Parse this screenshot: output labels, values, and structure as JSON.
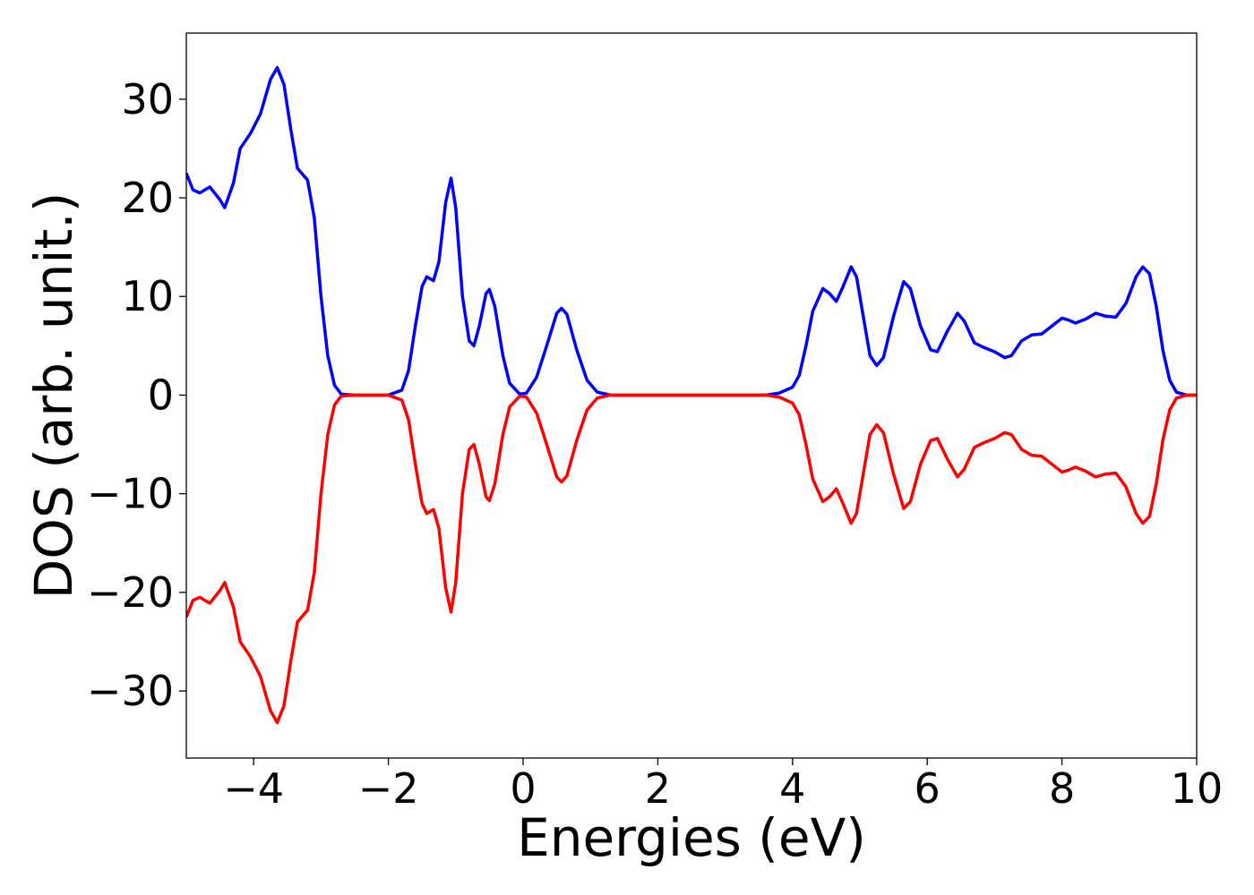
{
  "chart_data": {
    "type": "line",
    "xlabel": "Energies (eV)",
    "ylabel": "DOS (arb. unit.)",
    "xlim": [
      -5,
      10
    ],
    "ylim": [
      -36.8,
      36.7
    ],
    "xticks": [
      {
        "value": -4,
        "label": "−4"
      },
      {
        "value": -2,
        "label": "−2"
      },
      0,
      2,
      4,
      6,
      8,
      10
    ],
    "yticks": [
      {
        "value": -30,
        "label": "−30"
      },
      {
        "value": -20,
        "label": "−20"
      },
      {
        "value": -10,
        "label": "−10"
      },
      0,
      10,
      20,
      30
    ],
    "grid": false,
    "x": [
      -5.0,
      -4.9,
      -4.8,
      -4.65,
      -4.5,
      -4.43,
      -4.3,
      -4.2,
      -4.05,
      -3.9,
      -3.75,
      -3.65,
      -3.55,
      -3.45,
      -3.35,
      -3.2,
      -3.1,
      -3.0,
      -2.9,
      -2.8,
      -2.7,
      -2.5,
      -2.0,
      -1.8,
      -1.7,
      -1.6,
      -1.5,
      -1.43,
      -1.33,
      -1.25,
      -1.15,
      -1.07,
      -1.0,
      -0.9,
      -0.8,
      -0.73,
      -0.65,
      -0.55,
      -0.5,
      -0.42,
      -0.3,
      -0.2,
      -0.05,
      0.05,
      0.2,
      0.35,
      0.5,
      0.57,
      0.65,
      0.8,
      0.95,
      1.1,
      1.3,
      3.6,
      3.8,
      4.0,
      4.1,
      4.2,
      4.3,
      4.45,
      4.55,
      4.65,
      4.75,
      4.87,
      4.95,
      5.05,
      5.15,
      5.25,
      5.35,
      5.5,
      5.65,
      5.75,
      5.9,
      6.05,
      6.15,
      6.3,
      6.45,
      6.55,
      6.7,
      6.85,
      7.0,
      7.15,
      7.25,
      7.4,
      7.55,
      7.7,
      7.85,
      8.0,
      8.1,
      8.2,
      8.35,
      8.5,
      8.65,
      8.8,
      8.95,
      9.1,
      9.2,
      9.3,
      9.4,
      9.5,
      9.6,
      9.7,
      9.85,
      10.0
    ],
    "series": [
      {
        "color": "#0000ff",
        "values": [
          22.5,
          20.8,
          20.5,
          21.1,
          19.8,
          19.0,
          21.5,
          25,
          26.5,
          28.5,
          32,
          33.2,
          31.5,
          27,
          23,
          21.8,
          18,
          10,
          4,
          1,
          0.1,
          0,
          0,
          0.5,
          2.5,
          7,
          11,
          12,
          11.6,
          13.5,
          19.5,
          22,
          19,
          10,
          5.5,
          5,
          7,
          10.3,
          10.7,
          9,
          4,
          1.2,
          0.1,
          0.2,
          1.8,
          5,
          8.3,
          8.8,
          8.2,
          4.5,
          1.5,
          0.3,
          0,
          0,
          0.2,
          0.8,
          2,
          5,
          8.5,
          10.8,
          10.3,
          9.5,
          11,
          13,
          12,
          8,
          4,
          3,
          3.8,
          8,
          11.5,
          10.8,
          7,
          4.6,
          4.4,
          6.5,
          8.3,
          7.5,
          5.3,
          4.8,
          4.4,
          3.8,
          4,
          5.5,
          6.1,
          6.2,
          7,
          7.8,
          7.6,
          7.3,
          7.7,
          8.3,
          8,
          7.9,
          9.3,
          12,
          13,
          12.3,
          9,
          4.5,
          1.5,
          0.3,
          0,
          0
        ]
      },
      {
        "color": "#ff0000",
        "values": [
          -22.5,
          -20.8,
          -20.5,
          -21.1,
          -19.8,
          -19.0,
          -21.5,
          -25,
          -26.5,
          -28.5,
          -32,
          -33.2,
          -31.5,
          -27,
          -23,
          -21.8,
          -18,
          -10,
          -4,
          -1,
          -0.1,
          0,
          0,
          -0.5,
          -2.5,
          -7,
          -11,
          -12,
          -11.6,
          -13.5,
          -19.5,
          -22,
          -19,
          -10,
          -5.5,
          -5,
          -7,
          -10.3,
          -10.7,
          -9,
          -4,
          -1.2,
          -0.1,
          -0.2,
          -1.8,
          -5,
          -8.3,
          -8.8,
          -8.2,
          -4.5,
          -1.5,
          -0.3,
          0,
          0,
          -0.2,
          -0.8,
          -2,
          -5,
          -8.5,
          -10.8,
          -10.3,
          -9.5,
          -11,
          -13,
          -12,
          -8,
          -4,
          -3,
          -3.8,
          -8,
          -11.5,
          -10.8,
          -7,
          -4.6,
          -4.4,
          -6.5,
          -8.3,
          -7.5,
          -5.3,
          -4.8,
          -4.4,
          -3.8,
          -4,
          -5.5,
          -6.1,
          -6.2,
          -7,
          -7.8,
          -7.6,
          -7.3,
          -7.7,
          -8.3,
          -8,
          -7.9,
          -9.3,
          -12,
          -13,
          -12.3,
          -9,
          -4.5,
          -1.5,
          -0.3,
          0,
          0
        ]
      }
    ]
  }
}
